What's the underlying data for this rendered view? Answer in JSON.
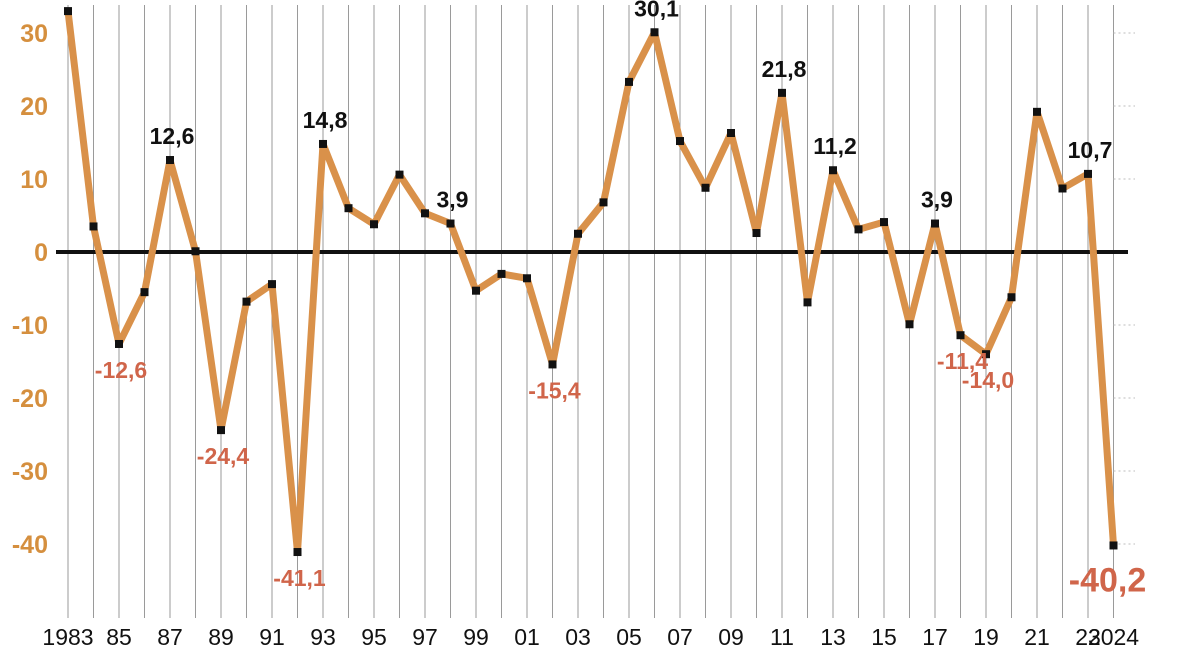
{
  "chart_data": {
    "type": "line",
    "title": "",
    "xlabel": "",
    "ylabel": "",
    "x": [
      1983,
      1984,
      1985,
      1986,
      1987,
      1988,
      1989,
      1990,
      1991,
      1992,
      1993,
      1994,
      1995,
      1996,
      1997,
      1998,
      1999,
      2000,
      2001,
      2002,
      2003,
      2004,
      2005,
      2006,
      2007,
      2008,
      2009,
      2010,
      2011,
      2012,
      2013,
      2014,
      2015,
      2016,
      2017,
      2018,
      2019,
      2020,
      2021,
      2022,
      2023,
      2024
    ],
    "values": [
      33,
      3.5,
      -12.6,
      -5.5,
      12.6,
      0.1,
      -24.4,
      -6.8,
      -4.4,
      -41.1,
      14.8,
      6,
      3.8,
      10.6,
      5.3,
      3.9,
      -5.3,
      -3,
      -3.6,
      -15.4,
      2.5,
      6.8,
      23.3,
      30.1,
      15.2,
      8.8,
      16.3,
      2.6,
      21.8,
      -6.9,
      11.2,
      3.1,
      4.1,
      -9.9,
      3.9,
      -11.4,
      -14.0,
      -6.2,
      19.2,
      8.7,
      10.7,
      -40.2
    ],
    "ylim": [
      -45,
      33
    ],
    "yticks": [
      30,
      20,
      10,
      0,
      -10,
      -20,
      -30,
      -40
    ],
    "ytick_labels": [
      "30",
      "20",
      "10",
      "0",
      "-10",
      "-20",
      "-30",
      "-40"
    ],
    "xtick_labels": [
      {
        "year": 1983,
        "text": "1983"
      },
      {
        "year": 1985,
        "text": "85"
      },
      {
        "year": 1987,
        "text": "87"
      },
      {
        "year": 1989,
        "text": "89"
      },
      {
        "year": 1991,
        "text": "91"
      },
      {
        "year": 1993,
        "text": "93"
      },
      {
        "year": 1995,
        "text": "95"
      },
      {
        "year": 1997,
        "text": "97"
      },
      {
        "year": 1999,
        "text": "99"
      },
      {
        "year": 2001,
        "text": "01"
      },
      {
        "year": 2003,
        "text": "03"
      },
      {
        "year": 2005,
        "text": "05"
      },
      {
        "year": 2007,
        "text": "07"
      },
      {
        "year": 2009,
        "text": "09"
      },
      {
        "year": 2011,
        "text": "11"
      },
      {
        "year": 2013,
        "text": "13"
      },
      {
        "year": 2015,
        "text": "15"
      },
      {
        "year": 2017,
        "text": "17"
      },
      {
        "year": 2019,
        "text": "19"
      },
      {
        "year": 2021,
        "text": "21"
      },
      {
        "year": 2023,
        "text": "23"
      },
      {
        "year": 2024,
        "text": "2024"
      }
    ],
    "data_labels": [
      {
        "year": 1985,
        "text": "-12,6",
        "position": "below",
        "tone": "negative"
      },
      {
        "year": 1987,
        "text": "12,6",
        "position": "above",
        "tone": "positive"
      },
      {
        "year": 1989,
        "text": "-24,4",
        "position": "below",
        "tone": "negative"
      },
      {
        "year": 1992,
        "text": "-41,1",
        "position": "below",
        "tone": "negative"
      },
      {
        "year": 1993,
        "text": "14,8",
        "position": "above",
        "tone": "positive"
      },
      {
        "year": 1998,
        "text": "3,9",
        "position": "above",
        "tone": "positive"
      },
      {
        "year": 2002,
        "text": "-15,4",
        "position": "below",
        "tone": "negative"
      },
      {
        "year": 2006,
        "text": "30,1",
        "position": "above",
        "tone": "positive"
      },
      {
        "year": 2011,
        "text": "21,8",
        "position": "above",
        "tone": "positive"
      },
      {
        "year": 2013,
        "text": "11,2",
        "position": "above",
        "tone": "positive"
      },
      {
        "year": 2017,
        "text": "3,9",
        "position": "above",
        "tone": "positive"
      },
      {
        "year": 2018,
        "text": "-11,4",
        "position": "below",
        "tone": "negative"
      },
      {
        "year": 2019,
        "text": "-14,0",
        "position": "below",
        "tone": "negative"
      },
      {
        "year": 2023,
        "text": "10,7",
        "position": "above",
        "tone": "positive"
      },
      {
        "year": 2024,
        "text": "-40,2",
        "position": "below",
        "tone": "negative",
        "emphasis": true
      }
    ],
    "grid": "vertical",
    "legend": "none",
    "colors": {
      "line": "#d9914a",
      "marker": "#111111",
      "zero_line": "#111111",
      "grid": "#9a9a9a",
      "dotted_grid": "#bdbdbd",
      "ytick": "#d58f3e",
      "label_positive": "#111111",
      "label_negative": "#d0654a"
    }
  }
}
